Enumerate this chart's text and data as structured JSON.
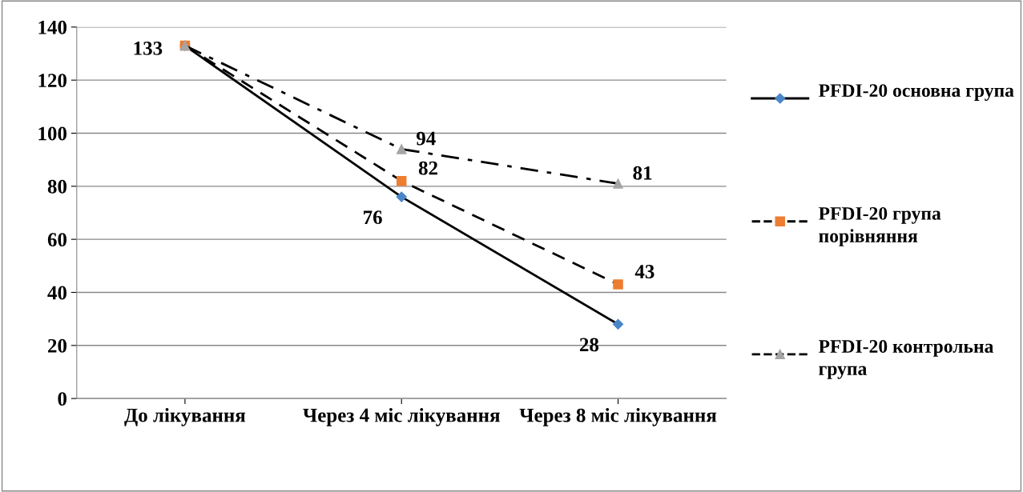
{
  "chart_data": {
    "type": "line",
    "categories": [
      "До лікування",
      "Через 4 міс лікування",
      "Через 8 міс лікування"
    ],
    "series": [
      {
        "name": "PFDI-20 основна група",
        "color": "#4a86c8",
        "marker": "diamond",
        "line_style": "solid",
        "values": [
          133,
          76,
          28
        ],
        "value_labels": [
          "133",
          "76",
          "28"
        ]
      },
      {
        "name": "PFDI-20 група порівняння",
        "color": "#ed7d31",
        "marker": "square",
        "line_style": "dashed",
        "values": [
          133,
          82,
          43
        ],
        "value_labels": [
          null,
          "82",
          "43"
        ]
      },
      {
        "name": "PFDI-20 контрольна група",
        "color": "#a5a5a5",
        "marker": "triangle",
        "line_style": "dashdot",
        "values": [
          133,
          94,
          81
        ],
        "value_labels": [
          null,
          "94",
          "81"
        ]
      }
    ],
    "ylim": [
      0,
      140
    ],
    "yticks": [
      0,
      20,
      40,
      60,
      80,
      100,
      120,
      140
    ],
    "grid": "y",
    "legend": "right"
  }
}
